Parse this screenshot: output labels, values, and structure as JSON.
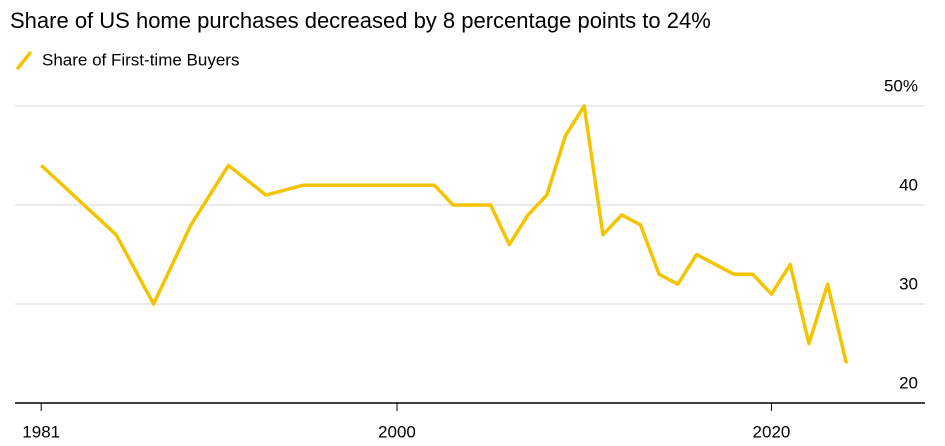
{
  "chart_data": {
    "type": "line",
    "title": "Share of US home purchases decreased by 8 percentage points to 24%",
    "series": [
      {
        "name": "Share of First-time Buyers",
        "color": "#f5c400",
        "x": [
          1981,
          1985,
          1987,
          1989,
          1991,
          1993,
          1995,
          1997,
          1999,
          2001,
          2002,
          2003,
          2004,
          2005,
          2006,
          2007,
          2008,
          2009,
          2010,
          2011,
          2012,
          2013,
          2014,
          2015,
          2016,
          2017,
          2018,
          2019,
          2020,
          2021,
          2022,
          2023,
          2024
        ],
        "values": [
          44,
          37,
          30,
          38,
          44,
          41,
          42,
          42,
          42,
          42,
          42,
          40,
          40,
          40,
          36,
          39,
          41,
          47,
          50,
          37,
          39,
          38,
          33,
          32,
          35,
          34,
          33,
          33,
          31,
          34,
          26,
          32,
          24
        ]
      }
    ],
    "xlim": [
      1979.6,
      2028.2
    ],
    "xticks": [
      1981,
      2000,
      2020
    ],
    "ylim": [
      20,
      50
    ],
    "yticks": [
      20,
      30,
      40,
      {
        "value": 50,
        "label": "50%"
      }
    ],
    "grid": true
  }
}
